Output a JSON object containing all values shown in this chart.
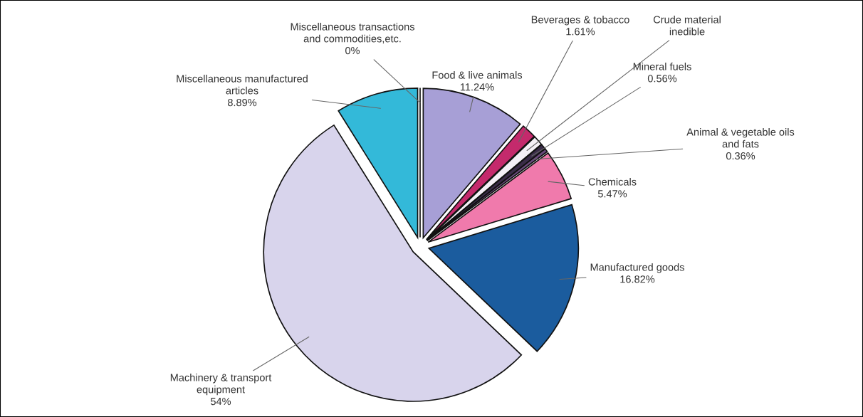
{
  "chart_data": {
    "type": "pie",
    "categories": [
      "Food & live animals",
      "Beverages & tobacco",
      "Crude material\ninedible",
      "Mineral fuels",
      "Animal & vegetable oils\nand fats",
      "Chemicals",
      "Manufactured goods",
      "Machinery & transport\nequipment",
      "Miscellaneous manufactured\narticles",
      "Miscellaneous transactions\nand commodities,etc."
    ],
    "values": [
      11.24,
      1.61,
      1.05,
      0.56,
      0.36,
      5.47,
      16.82,
      54,
      8.89,
      0
    ],
    "value_labels": [
      "11.24%",
      "1.61%",
      null,
      "0.56%",
      "0.36%",
      "5.47%",
      "16.82%",
      "54%",
      "8.89%",
      "0%"
    ],
    "colors": [
      "#a79fd6",
      "#c42a6c",
      "#f4f0f6",
      "#3a2c48",
      "#6c4a7e",
      "#f07aac",
      "#1b5c9e",
      "#d8d4ec",
      "#33b9d9",
      "#ffffff"
    ]
  }
}
